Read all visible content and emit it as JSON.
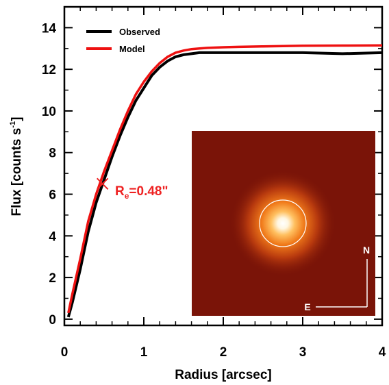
{
  "chart_data": {
    "type": "line",
    "title": "",
    "xlabel": "Radius [arcsec]",
    "ylabel_main": "Flux [counts s",
    "ylabel_sup": "-1",
    "ylabel_close": "]",
    "xlim": [
      0,
      4
    ],
    "ylim": [
      -0.3,
      15
    ],
    "xticks": [
      0,
      1,
      2,
      3,
      4
    ],
    "xtick_labels": [
      "0",
      "1",
      "2",
      "3",
      "4"
    ],
    "yticks": [
      0,
      2,
      4,
      6,
      8,
      10,
      12,
      14
    ],
    "ytick_labels": [
      "0",
      "2",
      "4",
      "6",
      "8",
      "10",
      "12",
      "14"
    ],
    "legend_position": "top-left",
    "series": [
      {
        "name": "Observed",
        "color": "#000000",
        "x": [
          0.05,
          0.1,
          0.2,
          0.3,
          0.4,
          0.5,
          0.6,
          0.7,
          0.8,
          0.9,
          1.0,
          1.1,
          1.2,
          1.3,
          1.4,
          1.5,
          1.6,
          1.7,
          1.8,
          2.0,
          2.2,
          2.5,
          3.0,
          3.5,
          4.0
        ],
        "y": [
          0.1,
          0.8,
          2.4,
          4.2,
          5.6,
          6.7,
          7.8,
          8.8,
          9.7,
          10.5,
          11.1,
          11.7,
          12.1,
          12.4,
          12.6,
          12.7,
          12.75,
          12.8,
          12.8,
          12.8,
          12.8,
          12.8,
          12.8,
          12.75,
          12.8
        ]
      },
      {
        "name": "Model",
        "color": "#ee1111",
        "x": [
          0.05,
          0.1,
          0.2,
          0.3,
          0.4,
          0.5,
          0.6,
          0.7,
          0.8,
          0.9,
          1.0,
          1.1,
          1.2,
          1.3,
          1.4,
          1.5,
          1.6,
          1.7,
          1.8,
          2.0,
          2.2,
          2.5,
          3.0,
          3.5,
          4.0
        ],
        "y": [
          0.3,
          1.2,
          2.9,
          4.7,
          6.0,
          7.1,
          8.1,
          9.1,
          10.0,
          10.8,
          11.4,
          11.9,
          12.3,
          12.6,
          12.8,
          12.9,
          12.97,
          13.0,
          13.03,
          13.06,
          13.08,
          13.1,
          13.13,
          13.14,
          13.15
        ]
      }
    ],
    "annotation": {
      "marker_x": 0.48,
      "marker_y": 6.5,
      "label_main": "R",
      "label_sub": "e",
      "label_rest": "=0.48\"",
      "color": "#ee2222"
    },
    "inset": {
      "compass_north": "N",
      "compass_east": "E",
      "background_color": "#7a1408"
    }
  }
}
